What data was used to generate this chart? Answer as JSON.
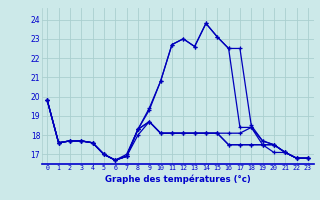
{
  "title": "Graphe des températures (°c)",
  "background_color": "#cce9e9",
  "grid_color": "#aacfcf",
  "line_color": "#0000bb",
  "axis_label_color": "#0000cc",
  "x_ticks": [
    0,
    1,
    2,
    3,
    4,
    5,
    6,
    7,
    8,
    9,
    10,
    11,
    12,
    13,
    14,
    15,
    16,
    17,
    18,
    19,
    20,
    21,
    22,
    23
  ],
  "y_ticks": [
    17,
    18,
    19,
    20,
    21,
    22,
    23,
    24
  ],
  "ylim": [
    16.5,
    24.6
  ],
  "xlim": [
    -0.5,
    23.5
  ],
  "curves": [
    [
      19.8,
      17.6,
      17.7,
      17.7,
      17.6,
      17.0,
      16.7,
      17.0,
      18.3,
      19.3,
      20.8,
      22.7,
      23.0,
      22.6,
      23.8,
      23.1,
      22.5,
      18.4,
      18.4,
      17.7,
      17.5,
      17.1,
      16.8,
      16.8
    ],
    [
      19.8,
      17.6,
      17.7,
      17.7,
      17.6,
      17.0,
      16.7,
      16.9,
      18.0,
      18.7,
      18.1,
      18.1,
      18.1,
      18.1,
      18.1,
      18.1,
      18.1,
      18.1,
      18.4,
      17.5,
      17.5,
      17.1,
      16.8,
      16.8
    ],
    [
      19.8,
      17.6,
      17.7,
      17.7,
      17.6,
      17.0,
      16.7,
      16.9,
      18.3,
      18.7,
      18.1,
      18.1,
      18.1,
      18.1,
      18.1,
      18.1,
      17.5,
      17.5,
      17.5,
      17.5,
      17.5,
      17.1,
      16.8,
      16.8
    ],
    [
      19.8,
      17.6,
      17.7,
      17.7,
      17.6,
      17.0,
      16.7,
      16.9,
      18.3,
      18.7,
      18.1,
      18.1,
      18.1,
      18.1,
      18.1,
      18.1,
      17.5,
      17.5,
      17.5,
      17.5,
      17.1,
      17.1,
      16.8,
      16.8
    ],
    [
      19.8,
      17.6,
      17.7,
      17.7,
      17.6,
      17.0,
      16.7,
      16.9,
      18.3,
      19.4,
      20.8,
      22.7,
      23.0,
      22.6,
      23.8,
      23.1,
      22.5,
      22.5,
      18.5,
      17.7,
      17.5,
      17.1,
      16.8,
      16.8
    ]
  ]
}
